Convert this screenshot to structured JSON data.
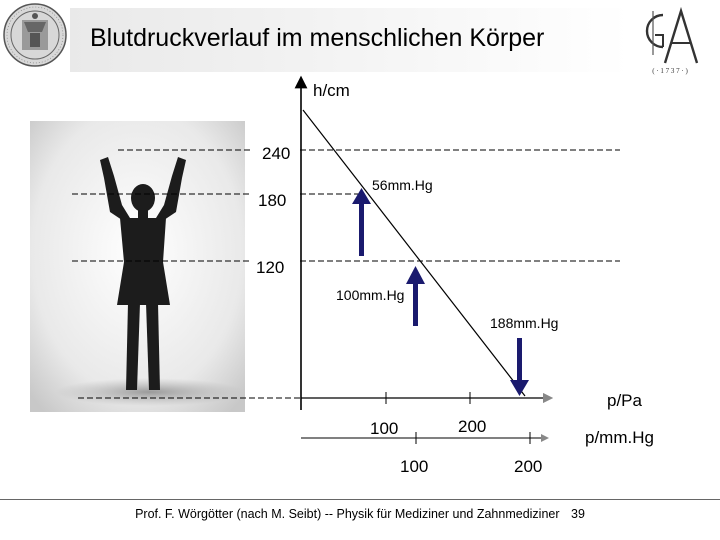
{
  "slide": {
    "title": "Blutdruckverlauf im menschlichen Körper",
    "footer": "Prof. F. Wörgötter (nach M. Seibt) -- Physik für Mediziner und Zahnmediziner",
    "page_number": "39"
  },
  "diagram": {
    "y_axis_label": "h/cm",
    "x_axis_label_pa": "p/Pa",
    "x_axis_label_mmhg": "p/mm.Hg",
    "height_levels": [
      "240",
      "180",
      "120"
    ],
    "pa_ticks": [
      "100",
      "200"
    ],
    "mmhg_ticks": [
      "100",
      "200"
    ],
    "arrow_labels": [
      "56mm.Hg",
      "100mm.Hg",
      "188mm.Hg"
    ]
  },
  "logo": {
    "letters": "GA",
    "caption": "( · 1 7 3 7 · )"
  },
  "colors": {
    "arrow": "#1a1a6e",
    "text": "#000000",
    "silhouette": "#1c1c1c"
  }
}
